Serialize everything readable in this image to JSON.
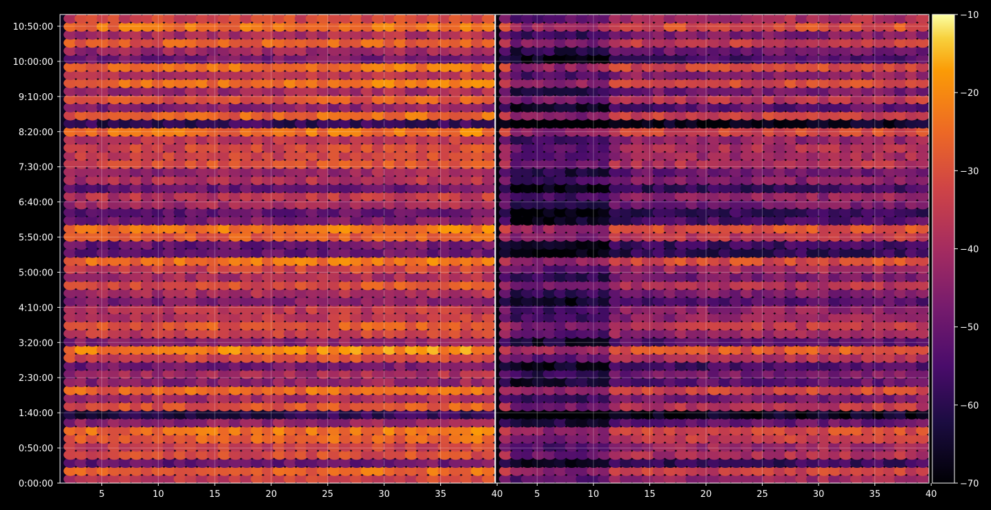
{
  "chart_data": {
    "type": "heatmap",
    "title": "",
    "xlabel": "",
    "ylabel": "",
    "background": "#000000",
    "colormap": "inferno",
    "grid": true,
    "panels": [
      {
        "name": "",
        "xlim": [
          1.3,
          39.8
        ],
        "x_ticks": [
          5,
          10,
          15,
          20,
          25,
          30,
          35,
          40
        ],
        "x_tick_labels": [
          "5",
          "10",
          "15",
          "20",
          "25",
          "30",
          "35",
          "40"
        ]
      },
      {
        "name": "",
        "xlim": [
          1.3,
          39.8
        ],
        "x_ticks": [
          5,
          10,
          15,
          20,
          25,
          30,
          35,
          40
        ],
        "x_tick_labels": [
          "5",
          "10",
          "15",
          "20",
          "25",
          "30",
          "35",
          "40"
        ]
      }
    ],
    "y_axis": {
      "ylim_seconds": [
        0,
        40000
      ],
      "ticks_seconds": [
        0,
        3000,
        6000,
        9000,
        12000,
        15000,
        18000,
        21000,
        24000,
        27000,
        30000,
        33000,
        36000,
        39000
      ],
      "tick_labels": [
        "0:00:00",
        "0:50:00",
        "1:40:00",
        "2:30:00",
        "3:20:00",
        "4:10:00",
        "5:00:00",
        "5:50:00",
        "6:40:00",
        "7:30:00",
        "8:20:00",
        "9:10:00",
        "10:00:00",
        "10:50:00"
      ]
    },
    "colorbar": {
      "range": [
        -70,
        -10
      ],
      "ticks": [
        -10,
        -20,
        -30,
        -40,
        -50,
        -60,
        -70
      ],
      "tick_labels": [
        "−10",
        "−20",
        "−30",
        "−40",
        "−50",
        "−60",
        "−70"
      ]
    },
    "rows": 58,
    "columns": 39,
    "row_levels_dB": [
      -36,
      -28,
      -52,
      -33,
      -36,
      -29,
      -26,
      -45,
      -62,
      -31,
      -42,
      -27,
      -46,
      -42,
      -50,
      -33,
      -23,
      -47,
      -36,
      -30,
      -38,
      -38,
      -48,
      -41,
      -32,
      -42,
      -35,
      -25,
      -53,
      -51,
      -30,
      -25,
      -49,
      -53,
      -42,
      -38,
      -52,
      -40,
      -44,
      -32,
      -35,
      -34,
      -38,
      -26,
      -60,
      -28,
      -47,
      -31,
      -43,
      -26,
      -38,
      -26,
      -50,
      -43,
      -29,
      -41,
      -25,
      -34
    ],
    "right_panel_offset_dB": -8,
    "right_panel_dark_columns": [
      1,
      2,
      3,
      4,
      5,
      6,
      7,
      8,
      9
    ]
  }
}
